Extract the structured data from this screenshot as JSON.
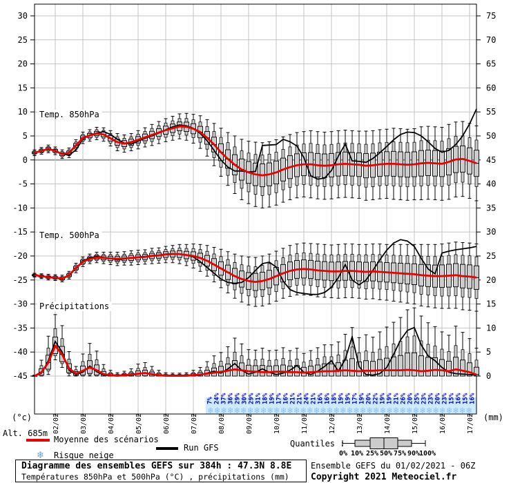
{
  "colors": {
    "mean": "#ee0000",
    "gfs": "#000000",
    "box_fill": "#cccccc",
    "box_stroke": "#000000",
    "grid": "#c3c3c3",
    "zero_line": "#9a9a9a",
    "snow_text": "#0000bb",
    "snow_band": "#cdeaff",
    "snowflake": "#8cc2ee"
  },
  "legend": {
    "altitude": "Alt. 685m",
    "mean_label": "Moyenne des scénarios",
    "gfs_label": "Run GFS",
    "snow_label": "Risque neige",
    "snow_icon_char": "❄"
  },
  "quantiles_legend": {
    "label": "Quantiles :",
    "ticks": [
      "0%",
      "10%",
      "25%",
      "50%",
      "75%",
      "90%",
      "100%"
    ]
  },
  "footer": {
    "title": "Diagramme des ensembles GEFS sur 384h : 47.3N 8.8E",
    "subtitle": "Températures 850hPa et 500hPa (°C) , précipitations (mm)",
    "run_info": "Ensemble GEFS du 01/02/2021 - 06Z",
    "copyright": "Copyright 2021 Meteociel.fr"
  },
  "chart_data": {
    "type": "ensemble-boxplot-timeseries",
    "x_step_hours": 6,
    "x_day_labels": [
      "02/02",
      "03/02",
      "04/02",
      "05/02",
      "06/02",
      "07/02",
      "08/02",
      "09/02",
      "10/02",
      "11/02",
      "12/02",
      "13/02",
      "14/02",
      "15/02",
      "16/02",
      "17/02"
    ],
    "y_left_axis": {
      "unit": "(°c)",
      "ticks": [
        30,
        25,
        20,
        15,
        10,
        5,
        0,
        -5,
        -10,
        -15,
        -20,
        -25,
        -30,
        -35,
        -40,
        -45
      ]
    },
    "y_right_axis": {
      "unit": "(mm)",
      "ticks": [
        75,
        70,
        65,
        60,
        55,
        50,
        45,
        40,
        35,
        30,
        25,
        20,
        15,
        10,
        5,
        0
      ]
    },
    "quantiles_shown": [
      0,
      10,
      25,
      50,
      75,
      90,
      100
    ],
    "snow_risk_pct": [
      7,
      24,
      37,
      36,
      29,
      30,
      29,
      31,
      18,
      19,
      17,
      16,
      21,
      21,
      24,
      21,
      16,
      16,
      18,
      19,
      19,
      17,
      19,
      20,
      22,
      19,
      19,
      21,
      26,
      20,
      25,
      23,
      23,
      20,
      23,
      15,
      16,
      15,
      16
    ],
    "panels": [
      {
        "id": "t850",
        "title": "Temp. 850hPa",
        "units": "°C",
        "mean": [
          1.5,
          1.9,
          2.3,
          1.9,
          1.2,
          1.5,
          3.0,
          4.6,
          5.1,
          5.5,
          5.3,
          4.5,
          3.7,
          3.4,
          3.7,
          4.2,
          4.7,
          5.2,
          5.7,
          6.2,
          6.6,
          7.0,
          6.9,
          6.5,
          5.8,
          4.6,
          3.2,
          1.6,
          0.2,
          -1.0,
          -2.0,
          -2.6,
          -3.0,
          -3.2,
          -3.0,
          -2.6,
          -2.0,
          -1.5,
          -1.1,
          -0.9,
          -0.9,
          -1.1,
          -1.2,
          -1.1,
          -0.9,
          -0.8,
          -0.9,
          -1.0,
          -1.2,
          -1.1,
          -0.9,
          -0.8,
          -0.8,
          -0.9,
          -1.0,
          -0.9,
          -0.7,
          -0.6,
          -0.7,
          -0.8,
          -0.4,
          0.1,
          0.2,
          -0.2,
          -0.7
        ],
        "gfs": [
          1.5,
          1.9,
          2.3,
          2.0,
          1.2,
          1.0,
          2.1,
          4.3,
          5.2,
          5.6,
          5.9,
          5.3,
          4.3,
          3.5,
          3.3,
          3.9,
          4.5,
          5.0,
          5.6,
          6.3,
          6.9,
          7.3,
          7.1,
          6.6,
          5.5,
          4.0,
          2.0,
          0.0,
          -1.5,
          -2.3,
          -2.3,
          -2.5,
          -2.4,
          3.0,
          3.1,
          3.2,
          4.3,
          3.8,
          2.9,
          0.5,
          -3.3,
          -4.0,
          -3.8,
          -2.2,
          0.8,
          3.3,
          -0.2,
          -0.3,
          -0.5,
          0.3,
          1.5,
          2.8,
          4.2,
          5.3,
          5.8,
          5.7,
          5.0,
          3.8,
          2.4,
          1.6,
          2.0,
          3.2,
          5.0,
          7.5,
          10.6
        ],
        "spread": [
          0.6,
          0.7,
          0.8,
          0.8,
          0.9,
          1.0,
          1.2,
          1.2,
          1.2,
          1.3,
          1.4,
          1.6,
          1.8,
          1.8,
          1.8,
          1.9,
          2.0,
          2.2,
          2.3,
          2.4,
          2.5,
          2.6,
          2.8,
          3.0,
          3.4,
          3.8,
          4.4,
          5.0,
          5.5,
          6.0,
          6.3,
          6.5,
          6.7,
          6.8,
          6.8,
          6.8,
          6.8,
          6.8,
          6.8,
          6.8,
          7.0,
          7.0,
          7.0,
          7.0,
          7.0,
          7.0,
          7.0,
          7.0,
          7.2,
          7.2,
          7.2,
          7.2,
          7.4,
          7.4,
          7.4,
          7.4,
          7.6,
          7.6,
          7.6,
          7.6,
          7.8,
          7.8,
          7.8,
          7.8,
          7.8
        ]
      },
      {
        "id": "t500",
        "title": "Temp. 500hPa",
        "units": "°C",
        "mean": [
          -24.0,
          -24.2,
          -24.4,
          -24.5,
          -24.7,
          -24.0,
          -22.5,
          -21.2,
          -20.6,
          -20.3,
          -20.4,
          -20.5,
          -20.6,
          -20.5,
          -20.4,
          -20.3,
          -20.2,
          -20.0,
          -19.9,
          -19.7,
          -19.6,
          -19.6,
          -19.8,
          -20.0,
          -20.4,
          -21.0,
          -21.8,
          -22.6,
          -23.4,
          -24.2,
          -24.8,
          -25.2,
          -25.4,
          -25.2,
          -24.8,
          -24.2,
          -23.6,
          -23.1,
          -22.8,
          -22.7,
          -22.8,
          -23.0,
          -23.1,
          -23.2,
          -23.2,
          -23.1,
          -23.1,
          -23.2,
          -23.3,
          -23.2,
          -23.3,
          -23.4,
          -23.5,
          -23.6,
          -23.7,
          -23.8,
          -24.0,
          -24.1,
          -24.2,
          -24.2,
          -24.1,
          -24.0,
          -24.2,
          -24.3,
          -24.5
        ],
        "gfs": [
          -24.0,
          -24.2,
          -24.5,
          -24.6,
          -24.8,
          -24.1,
          -22.6,
          -21.0,
          -20.4,
          -20.1,
          -20.3,
          -20.5,
          -20.8,
          -20.6,
          -20.4,
          -20.2,
          -20.1,
          -19.9,
          -19.8,
          -19.6,
          -19.5,
          -19.6,
          -19.8,
          -20.2,
          -21.2,
          -22.4,
          -23.6,
          -24.8,
          -25.5,
          -25.7,
          -25.5,
          -24.5,
          -23.0,
          -21.6,
          -21.3,
          -22.3,
          -25.2,
          -27.0,
          -27.6,
          -27.8,
          -28.0,
          -28.0,
          -27.6,
          -26.5,
          -24.5,
          -21.8,
          -25.0,
          -26.0,
          -25.0,
          -23.0,
          -20.8,
          -18.8,
          -17.3,
          -16.6,
          -16.9,
          -18.0,
          -20.5,
          -22.7,
          -23.7,
          -19.4,
          -19.0,
          -18.7,
          -18.5,
          -18.3,
          -18.0
        ],
        "spread": [
          0.4,
          0.5,
          0.6,
          0.6,
          0.7,
          0.8,
          1.0,
          1.0,
          1.0,
          1.1,
          1.2,
          1.3,
          1.4,
          1.4,
          1.5,
          1.5,
          1.5,
          1.6,
          1.6,
          1.7,
          1.8,
          2.0,
          2.2,
          2.5,
          2.8,
          3.2,
          3.6,
          4.0,
          4.3,
          4.6,
          4.8,
          5.0,
          5.1,
          5.2,
          5.2,
          5.2,
          5.2,
          5.3,
          5.3,
          5.4,
          5.4,
          5.5,
          5.5,
          5.5,
          5.6,
          5.6,
          5.6,
          5.6,
          5.7,
          5.7,
          5.8,
          5.8,
          5.9,
          6.0,
          6.1,
          6.2,
          6.4,
          6.5,
          6.6,
          6.7,
          6.8,
          6.9,
          7.0,
          7.0,
          7.0
        ]
      },
      {
        "id": "precip",
        "title": "Précipitations",
        "units": "mm",
        "clamp_zero": true,
        "mean": [
          0.0,
          0.8,
          2.8,
          6.3,
          4.5,
          1.6,
          0.5,
          1.1,
          1.8,
          1.2,
          0.4,
          0.2,
          0.1,
          0.2,
          0.3,
          0.5,
          0.6,
          0.4,
          0.2,
          0.1,
          0.1,
          0.1,
          0.1,
          0.2,
          0.3,
          0.5,
          0.7,
          0.9,
          1.1,
          1.4,
          1.2,
          1.0,
          0.9,
          0.8,
          0.8,
          0.9,
          0.9,
          0.8,
          0.8,
          0.7,
          0.8,
          0.9,
          1.0,
          1.0,
          1.1,
          1.2,
          1.1,
          1.0,
          1.1,
          1.1,
          1.2,
          1.2,
          1.2,
          1.2,
          1.3,
          1.2,
          1.0,
          1.1,
          1.3,
          1.2,
          1.0,
          1.4,
          1.1,
          0.8,
          0.3
        ],
        "gfs": [
          0.0,
          0.6,
          3.2,
          7.2,
          5.0,
          1.2,
          0.3,
          0.8,
          2.1,
          0.9,
          0.2,
          0.1,
          0.0,
          0.1,
          0.2,
          0.4,
          0.7,
          0.3,
          0.1,
          0.0,
          0.0,
          0.0,
          0.0,
          0.1,
          0.2,
          0.6,
          1.0,
          0.6,
          1.5,
          2.6,
          1.2,
          0.4,
          0.8,
          1.5,
          0.8,
          0.3,
          0.6,
          1.2,
          2.2,
          0.8,
          0.3,
          1.0,
          2.0,
          3.2,
          1.0,
          3.5,
          8.2,
          2.0,
          0.3,
          0.2,
          0.5,
          1.8,
          4.5,
          7.5,
          9.5,
          10.1,
          6.5,
          4.2,
          3.2,
          1.8,
          0.8,
          0.5,
          0.4,
          0.3,
          0.2
        ],
        "spread": [
          0.2,
          2.5,
          5.5,
          6.5,
          6.0,
          3.5,
          1.5,
          3.5,
          5.0,
          4.0,
          2.0,
          1.0,
          0.6,
          0.8,
          1.2,
          2.0,
          2.2,
          1.6,
          1.0,
          0.6,
          0.5,
          0.5,
          0.6,
          1.0,
          1.5,
          2.5,
          3.5,
          4.0,
          5.0,
          6.5,
          5.5,
          4.5,
          4.5,
          5.0,
          4.5,
          4.5,
          5.0,
          4.5,
          5.0,
          4.0,
          4.5,
          5.0,
          5.5,
          5.5,
          6.0,
          7.5,
          9.0,
          7.0,
          7.5,
          7.0,
          8.0,
          9.0,
          10.0,
          11.0,
          12.5,
          13.0,
          11.5,
          10.0,
          9.0,
          8.0,
          7.5,
          9.0,
          8.0,
          7.0,
          5.5
        ]
      }
    ]
  }
}
